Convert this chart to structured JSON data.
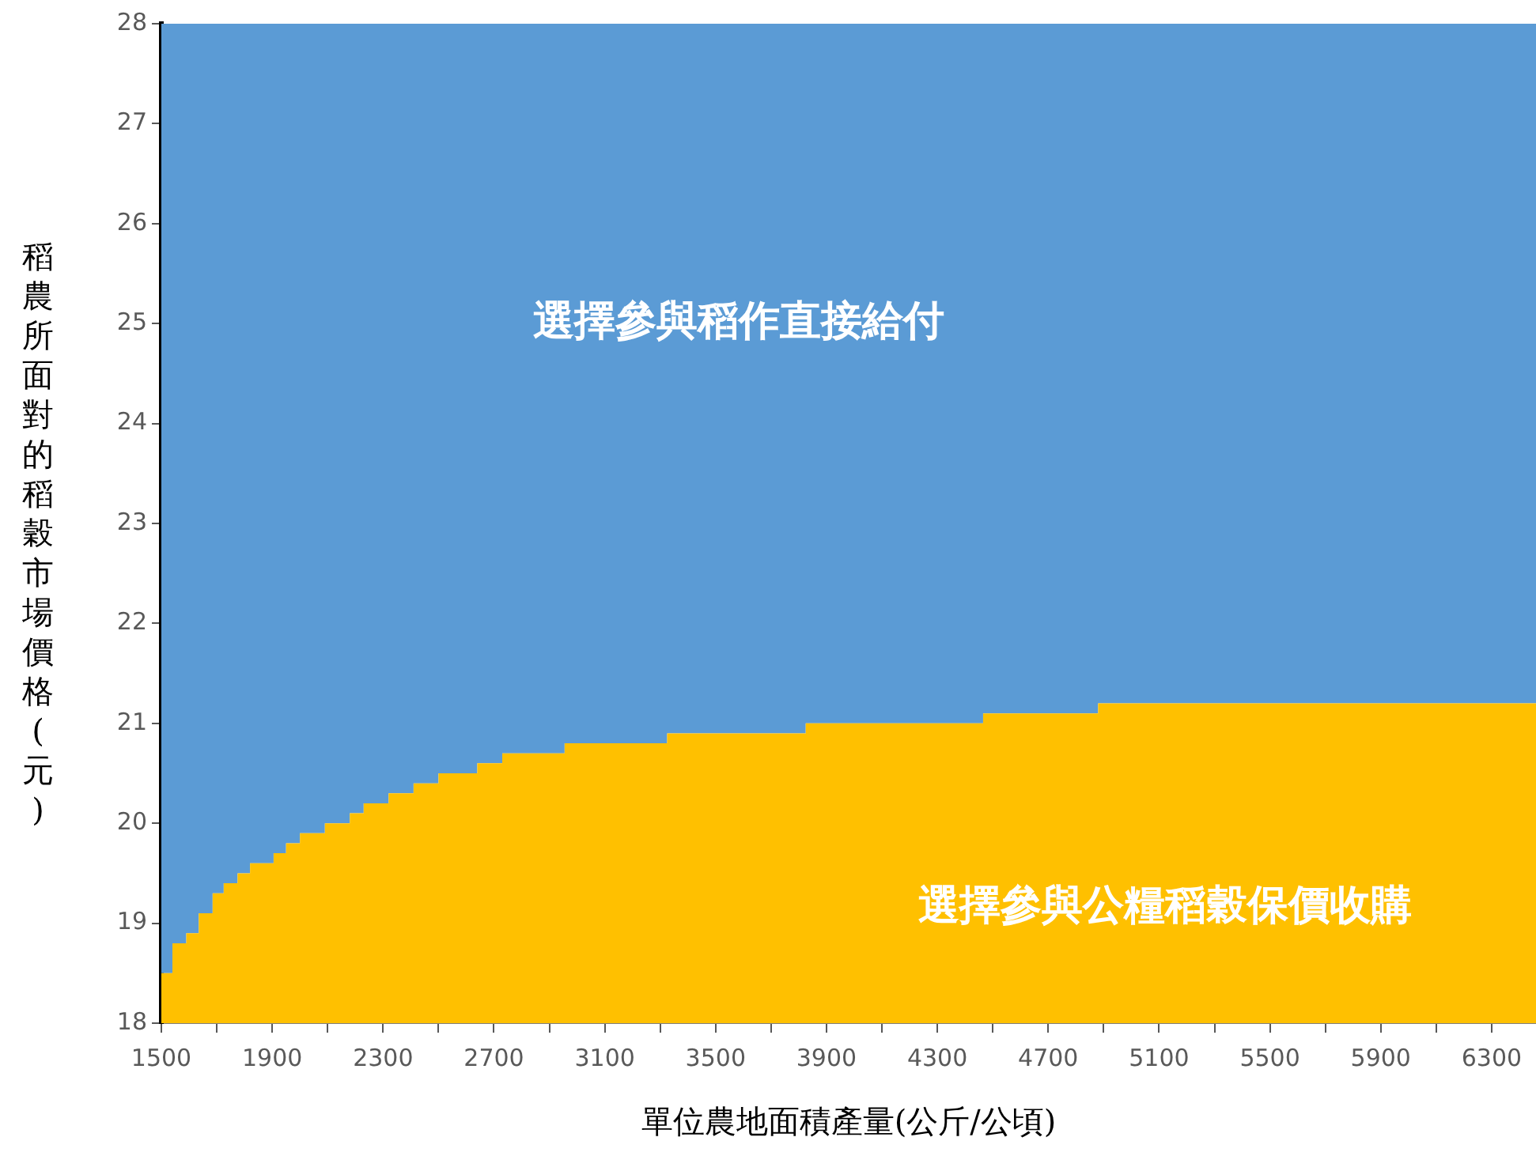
{
  "chart_data": {
    "type": "step",
    "xlabel": "單位農地面積產量(公斤/公頃)",
    "ylabel": "稻農所面對的稻穀市場價格(元)",
    "x": [
      1500,
      1540,
      1590,
      1635,
      1685,
      1725,
      1775,
      1820,
      1905,
      1950,
      2000,
      2090,
      2180,
      2230,
      2320,
      2410,
      2500,
      2640,
      2730,
      2955,
      3325,
      3825,
      4465,
      4880,
      6460
    ],
    "series": [
      {
        "type": "area",
        "color": "#ffc000",
        "values": [
          18.5,
          18.8,
          18.9,
          19.1,
          19.3,
          19.4,
          19.5,
          19.6,
          19.7,
          19.8,
          19.9,
          20.0,
          20.1,
          20.2,
          20.3,
          20.4,
          20.5,
          20.6,
          20.7,
          20.8,
          20.9,
          21.0,
          21.1,
          21.2,
          21.2
        ]
      },
      {
        "type": "area",
        "color": "#5b9bd5",
        "values": [
          28,
          28,
          28,
          28,
          28,
          28,
          28,
          28,
          28,
          28,
          28,
          28,
          28,
          28,
          28,
          28,
          28,
          28,
          28,
          28,
          28,
          28,
          28,
          28,
          28
        ]
      }
    ],
    "xlim": [
      1500,
      6460
    ],
    "xticks": [
      1500,
      {
        "value": 1700,
        "label": null
      },
      1900,
      {
        "value": 2100,
        "label": null
      },
      2300,
      {
        "value": 2500,
        "label": null
      },
      2700,
      {
        "value": 2900,
        "label": null
      },
      3100,
      {
        "value": 3300,
        "label": null
      },
      3500,
      {
        "value": 3700,
        "label": null
      },
      3900,
      {
        "value": 4100,
        "label": null
      },
      4300,
      {
        "value": 4500,
        "label": null
      },
      4700,
      {
        "value": 4900,
        "label": null
      },
      5100,
      {
        "value": 5300,
        "label": null
      },
      5500,
      {
        "value": 5700,
        "label": null
      },
      5900,
      {
        "value": 6100,
        "label": null
      },
      6300
    ],
    "ylim": [
      18,
      28
    ],
    "yticks": [
      18,
      19,
      20,
      21,
      22,
      23,
      24,
      25,
      26,
      27,
      28
    ],
    "grid": false,
    "legend": false,
    "annotations": [
      "選擇參與稻作直接給付",
      "選擇參與公糧稻穀保價收購"
    ]
  }
}
